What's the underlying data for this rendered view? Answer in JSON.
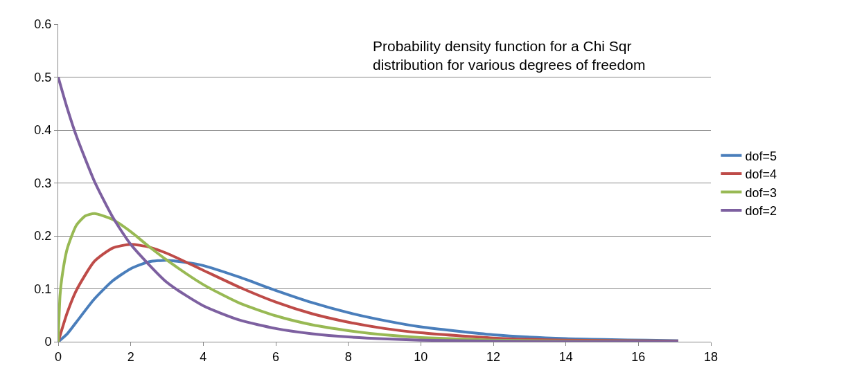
{
  "chart_data": {
    "type": "line",
    "annotations": [
      "Probability density function for a Chi Sqr distribution for various degrees of freedom"
    ],
    "series": [
      {
        "name": "dof=5",
        "color": "#4a7ebb",
        "x": [
          0,
          0.25,
          0.5,
          1,
          1.5,
          2,
          2.5,
          3,
          3.5,
          4,
          5,
          6,
          7,
          8,
          9,
          10,
          12,
          14,
          17.1
        ],
        "values": [
          0,
          0.015,
          0.037,
          0.081,
          0.115,
          0.138,
          0.151,
          0.154,
          0.15,
          0.144,
          0.122,
          0.097,
          0.074,
          0.055,
          0.04,
          0.028,
          0.013,
          0.006,
          0.002
        ]
      },
      {
        "name": "dof=4",
        "color": "#be4b48",
        "x": [
          0,
          0.25,
          0.5,
          1,
          1.5,
          2,
          2.5,
          3,
          4,
          5,
          6,
          7,
          8,
          9,
          10,
          12,
          14,
          17.1
        ],
        "values": [
          0,
          0.055,
          0.097,
          0.152,
          0.177,
          0.184,
          0.179,
          0.167,
          0.135,
          0.103,
          0.075,
          0.053,
          0.037,
          0.025,
          0.017,
          0.007,
          0.003,
          0.001
        ]
      },
      {
        "name": "dof=3",
        "color": "#98b954",
        "x": [
          0,
          0.05,
          0.1,
          0.25,
          0.5,
          0.75,
          1,
          1.5,
          2,
          2.5,
          3,
          4,
          5,
          6,
          7,
          8,
          9,
          10,
          12,
          14,
          17.1
        ],
        "values": [
          0,
          0.087,
          0.12,
          0.176,
          0.22,
          0.238,
          0.242,
          0.231,
          0.208,
          0.18,
          0.154,
          0.108,
          0.073,
          0.049,
          0.032,
          0.021,
          0.013,
          0.008,
          0.003,
          0.001,
          0
        ]
      },
      {
        "name": "dof=2",
        "color": "#7d60a0",
        "x": [
          0,
          0.25,
          0.5,
          1,
          1.5,
          2,
          3,
          4,
          5,
          6,
          7,
          8,
          10,
          12,
          14,
          17.1
        ],
        "values": [
          0.5,
          0.441,
          0.389,
          0.303,
          0.236,
          0.184,
          0.112,
          0.068,
          0.041,
          0.025,
          0.015,
          0.009,
          0.003,
          0.001,
          0,
          0
        ]
      }
    ],
    "xlim": [
      0,
      18
    ],
    "xticks": [
      0,
      2,
      4,
      6,
      8,
      10,
      12,
      14,
      16,
      18
    ],
    "ylim": [
      0,
      0.6
    ],
    "yticks": [
      0,
      0.1,
      0.2,
      0.3,
      0.4,
      0.5,
      0.6
    ],
    "grid": "y",
    "legend": "right",
    "marker": "none",
    "line_style": "solid"
  }
}
